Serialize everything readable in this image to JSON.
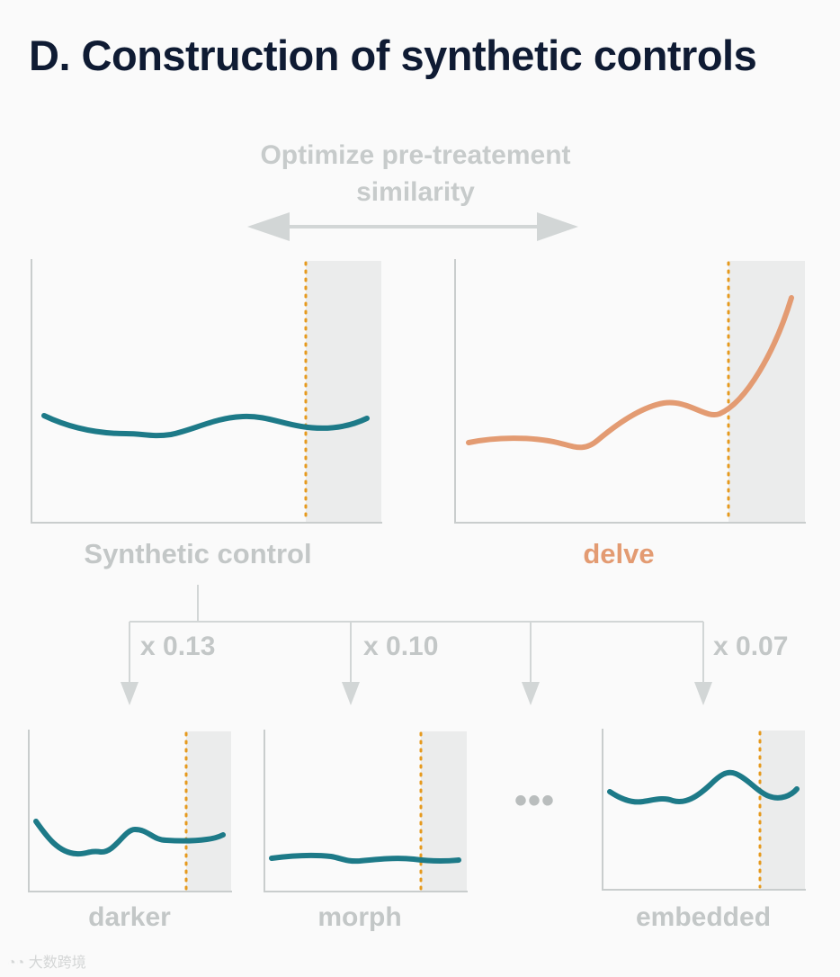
{
  "title": "D. Construction of synthetic controls",
  "optimize_label_line1": "Optimize pre-treatement",
  "optimize_label_line2": "similarity",
  "main_panels": {
    "left_label": "Synthetic control",
    "right_label": "delve"
  },
  "weights": [
    "x 0.13",
    "x 0.10",
    "x 0.07"
  ],
  "ellipsis": "•••",
  "small_panels": {
    "panel1_label": "darker",
    "panel2_label": "morph",
    "panel3_label": "embedded"
  },
  "watermark": "大数跨境",
  "colors": {
    "title": "#0f1b33",
    "teal": "#1d7a88",
    "orange": "#e39b72",
    "dotted": "#e69a1e",
    "gray_text": "#c3c7c7",
    "shade": "#ebecec"
  }
}
